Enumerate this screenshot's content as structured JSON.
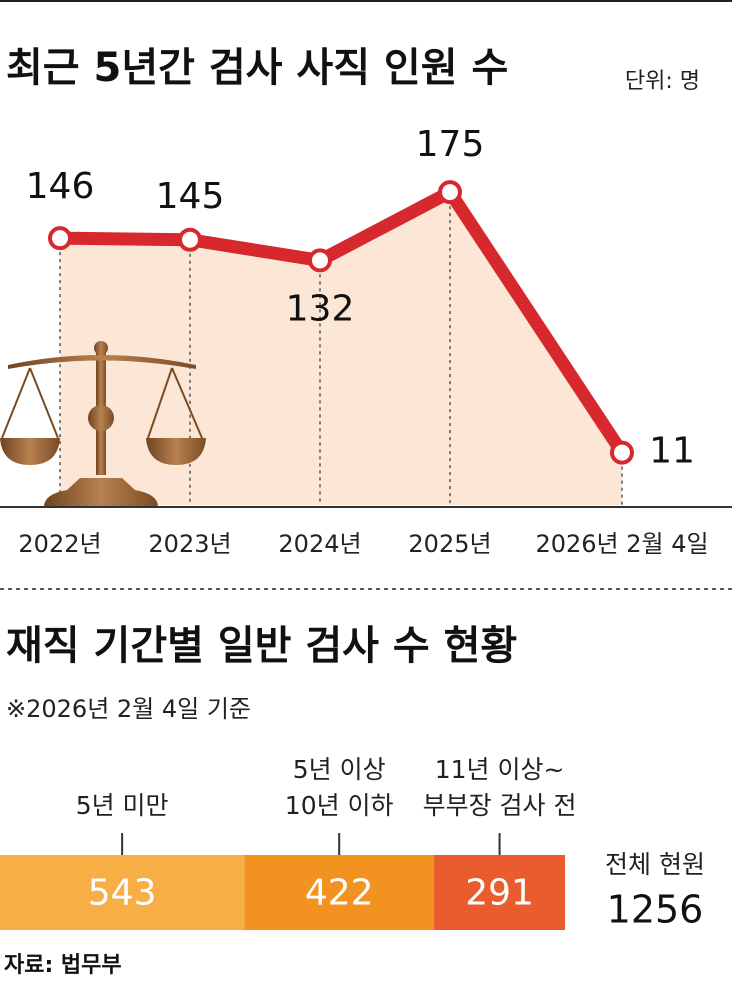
{
  "chart_data": [
    {
      "type": "line",
      "title": "최근 5년간 검사 사직 인원 수",
      "unit": "단위: 명",
      "categories": [
        "2022년",
        "2023년",
        "2024년",
        "2025년",
        "2026년 2월 4일"
      ],
      "values": [
        146,
        145,
        132,
        175,
        11
      ],
      "color": "#d7282e",
      "area_color": "#fce7d6",
      "ylim": [
        -22,
        233
      ]
    },
    {
      "type": "stacked-bar",
      "title": "재직 기간별 일반 검사 수 현황",
      "note": "※2026년 2월 4일 기준",
      "series": [
        {
          "name": "5년 미만",
          "color": "#f6ae45",
          "values": [
            543
          ]
        },
        {
          "name": "5년 이상\n10년 이하",
          "color": "#f29220",
          "values": [
            422
          ]
        },
        {
          "name": "11년 이상~\n부부장 검사 전",
          "color": "#ea5b2d",
          "values": [
            291
          ]
        }
      ],
      "total_label": "전체 현원",
      "total": 1256,
      "xlim": [
        0,
        1256
      ]
    }
  ],
  "source": "자료: 법무부"
}
